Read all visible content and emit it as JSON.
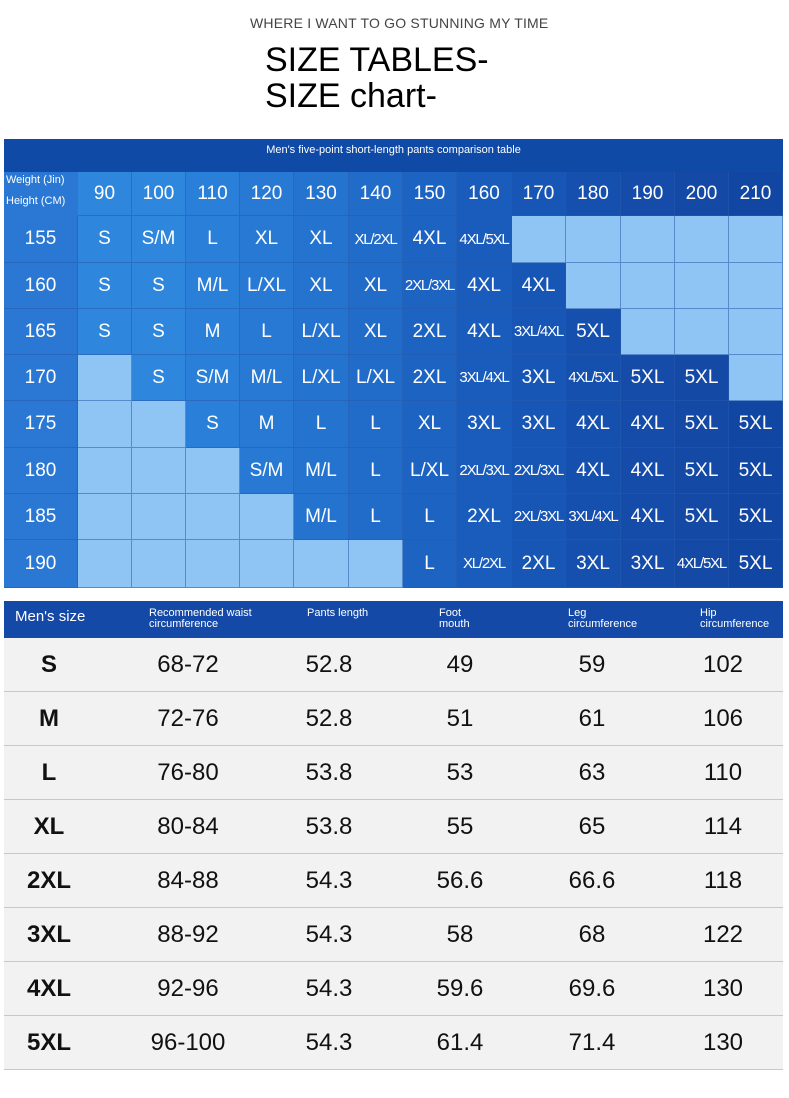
{
  "header": {
    "subtitle": "WHERE I WANT TO GO STUNNING MY TIME",
    "title_line1": "SIZE TABLES-",
    "title_line2": "SIZE chart-"
  },
  "grid": {
    "caption": "Men's five-point short-length pants comparison table",
    "weight_label": "Weight (Jin)",
    "height_label": "Height (CM)",
    "weights": [
      "90",
      "100",
      "110",
      "120",
      "130",
      "140",
      "150",
      "160",
      "170",
      "180",
      "190",
      "200",
      "210"
    ],
    "rows": [
      {
        "height": "155",
        "cells": [
          "S",
          "S/M",
          "L",
          "XL",
          "XL",
          "XL/2XL",
          "4XL",
          "4XL/5XL",
          "",
          "",
          "",
          "",
          ""
        ]
      },
      {
        "height": "160",
        "cells": [
          "S",
          "S",
          "M/L",
          "L/XL",
          "XL",
          "XL",
          "2XL/3XL",
          "4XL",
          "4XL",
          "",
          "",
          "",
          ""
        ]
      },
      {
        "height": "165",
        "cells": [
          "S",
          "S",
          "M",
          "L",
          "L/XL",
          "XL",
          "2XL",
          "4XL",
          "3XL/4XL",
          "5XL",
          "",
          "",
          ""
        ]
      },
      {
        "height": "170",
        "cells": [
          "",
          "S",
          "S/M",
          "M/L",
          "L/XL",
          "L/XL",
          "2XL",
          "3XL/4XL",
          "3XL",
          "4XL/5XL",
          "5XL",
          "5XL",
          ""
        ]
      },
      {
        "height": "175",
        "cells": [
          "",
          "",
          "S",
          "M",
          "L",
          "L",
          "XL",
          "3XL",
          "3XL",
          "4XL",
          "4XL",
          "5XL",
          "5XL"
        ]
      },
      {
        "height": "180",
        "cells": [
          "",
          "",
          "",
          "S/M",
          "M/L",
          "L",
          "L/XL",
          "2XL/3XL",
          "2XL/3XL",
          "4XL",
          "4XL",
          "5XL",
          "5XL"
        ]
      },
      {
        "height": "185",
        "cells": [
          "",
          "",
          "",
          "",
          "M/L",
          "L",
          "L",
          "2XL",
          "2XL/3XL",
          "3XL/4XL",
          "4XL",
          "5XL",
          "5XL"
        ]
      },
      {
        "height": "190",
        "cells": [
          "",
          "",
          "",
          "",
          "",
          "",
          "L",
          "XL/2XL",
          "2XL",
          "3XL",
          "3XL",
          "4XL/5XL",
          "5XL"
        ]
      }
    ],
    "colors": {
      "caption": "#0f4aa6",
      "label_col": "#2a78d4",
      "empty": "#8ec5f4",
      "column_shades": [
        "#2f86dd",
        "#2f86dd",
        "#2a7fd8",
        "#2779d4",
        "#2473cf",
        "#216cc9",
        "#1d63c2",
        "#1a5cbb",
        "#1856b5",
        "#1650ae",
        "#154ca9",
        "#1449a6",
        "#1246a3"
      ]
    }
  },
  "spec_table": {
    "headers": [
      {
        "line1": "Men's size",
        "line2": ""
      },
      {
        "line1": "Recommended waist",
        "line2": "circumference"
      },
      {
        "line1": "Pants length",
        "line2": ""
      },
      {
        "line1": "Foot",
        "line2": "mouth"
      },
      {
        "line1": "Leg",
        "line2": "circumference"
      },
      {
        "line1": "Hip",
        "line2": "circumference"
      }
    ],
    "rows": [
      [
        "S",
        "68-72",
        "52.8",
        "49",
        "59",
        "102"
      ],
      [
        "M",
        "72-76",
        "52.8",
        "51",
        "61",
        "106"
      ],
      [
        "L",
        "76-80",
        "53.8",
        "53",
        "63",
        "110"
      ],
      [
        "XL",
        "80-84",
        "53.8",
        "55",
        "65",
        "114"
      ],
      [
        "2XL",
        "84-88",
        "54.3",
        "56.6",
        "66.6",
        "118"
      ],
      [
        "3XL",
        "88-92",
        "54.3",
        "58",
        "68",
        "122"
      ],
      [
        "4XL",
        "92-96",
        "54.3",
        "59.6",
        "69.6",
        "130"
      ],
      [
        "5XL",
        "96-100",
        "54.3",
        "61.4",
        "71.4",
        "130"
      ]
    ]
  }
}
